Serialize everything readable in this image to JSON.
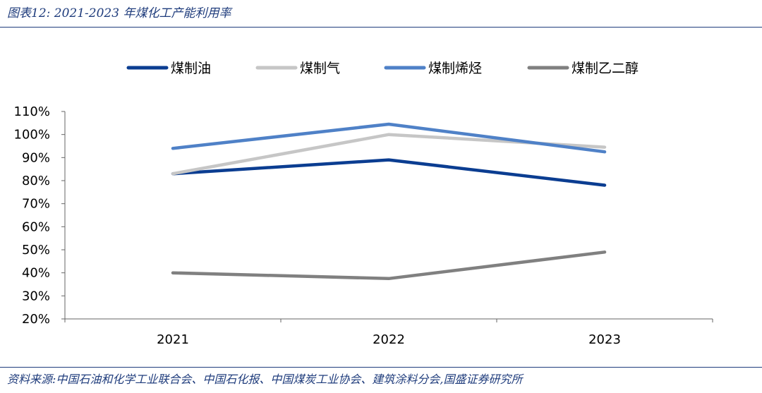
{
  "figure": {
    "title": "图表12:  2021-2023 年煤化工产能利用率",
    "source": "资料来源:中国石油和化学工业联合会、中国石化报、中国煤炭工业协会、建筑涂料分会,国盛证券研究所"
  },
  "chart_data": {
    "type": "line",
    "title": "",
    "xlabel": "",
    "ylabel": "",
    "categories": [
      "2021",
      "2022",
      "2023"
    ],
    "ylim": [
      0.2,
      1.1
    ],
    "y_ticks": [
      "110%",
      "100%",
      "90%",
      "80%",
      "70%",
      "60%",
      "50%",
      "40%",
      "30%",
      "20%"
    ],
    "grid": false,
    "legend_position": "top",
    "series": [
      {
        "name": "煤制油",
        "values": [
          0.83,
          0.89,
          0.78
        ],
        "color": "#0b3d91"
      },
      {
        "name": "煤制气",
        "values": [
          0.83,
          1.0,
          0.945
        ],
        "color": "#c6c6c6"
      },
      {
        "name": "煤制烯烃",
        "values": [
          0.94,
          1.045,
          0.925
        ],
        "color": "#4f81c7"
      },
      {
        "name": "煤制乙二醇",
        "values": [
          0.4,
          0.375,
          0.49
        ],
        "color": "#808080"
      }
    ]
  }
}
